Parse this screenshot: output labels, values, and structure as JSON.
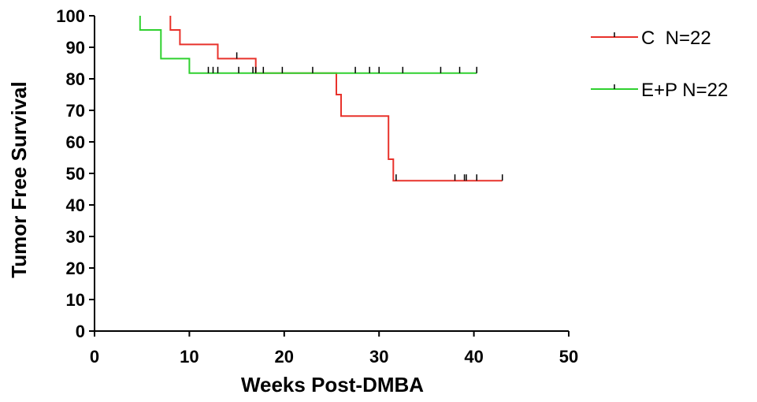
{
  "chart_data": {
    "type": "line",
    "title": "",
    "xlabel": "Weeks Post-DMBA",
    "ylabel": "Tumor Free Survival",
    "xlim": [
      0,
      50
    ],
    "ylim": [
      0,
      100
    ],
    "x_ticks": [
      0,
      10,
      20,
      30,
      40,
      50
    ],
    "y_ticks": [
      0,
      10,
      20,
      30,
      40,
      50,
      60,
      70,
      80,
      90,
      100
    ],
    "grid": false,
    "legend_position": "top-right",
    "series": [
      {
        "name": "C  N=22",
        "color": "#e8322b",
        "steps": [
          [
            8,
            100
          ],
          [
            8,
            95.5
          ],
          [
            9,
            95.5
          ],
          [
            9,
            90.9
          ],
          [
            13,
            90.9
          ],
          [
            13,
            86.4
          ],
          [
            17,
            86.4
          ],
          [
            17,
            81.8
          ],
          [
            25.5,
            81.8
          ],
          [
            25.5,
            75
          ],
          [
            26,
            75
          ],
          [
            26,
            68.2
          ],
          [
            31,
            68.2
          ],
          [
            31,
            54.5
          ],
          [
            31.5,
            54.5
          ],
          [
            31.5,
            47.7
          ],
          [
            43,
            47.7
          ]
        ],
        "censored": [
          [
            15,
            86.4
          ],
          [
            31.8,
            47.7
          ],
          [
            38,
            47.7
          ],
          [
            39,
            47.7
          ],
          [
            39.2,
            47.7
          ],
          [
            40.3,
            47.7
          ],
          [
            43,
            47.7
          ]
        ]
      },
      {
        "name": "E+P N=22",
        "color": "#2fd12f",
        "steps": [
          [
            4.8,
            100
          ],
          [
            4.8,
            95.5
          ],
          [
            7,
            95.5
          ],
          [
            7,
            86.4
          ],
          [
            10,
            86.4
          ],
          [
            10,
            81.8
          ],
          [
            40.3,
            81.8
          ]
        ],
        "censored": [
          [
            12,
            81.8
          ],
          [
            12.5,
            81.8
          ],
          [
            13,
            81.8
          ],
          [
            15.2,
            81.8
          ],
          [
            16.7,
            81.8
          ],
          [
            17,
            81.8
          ],
          [
            17.8,
            81.8
          ],
          [
            19.8,
            81.8
          ],
          [
            23,
            81.8
          ],
          [
            27.5,
            81.8
          ],
          [
            29,
            81.8
          ],
          [
            30,
            81.8
          ],
          [
            32.5,
            81.8
          ],
          [
            36.5,
            81.8
          ],
          [
            38.5,
            81.8
          ],
          [
            40.3,
            81.8
          ]
        ]
      }
    ]
  }
}
